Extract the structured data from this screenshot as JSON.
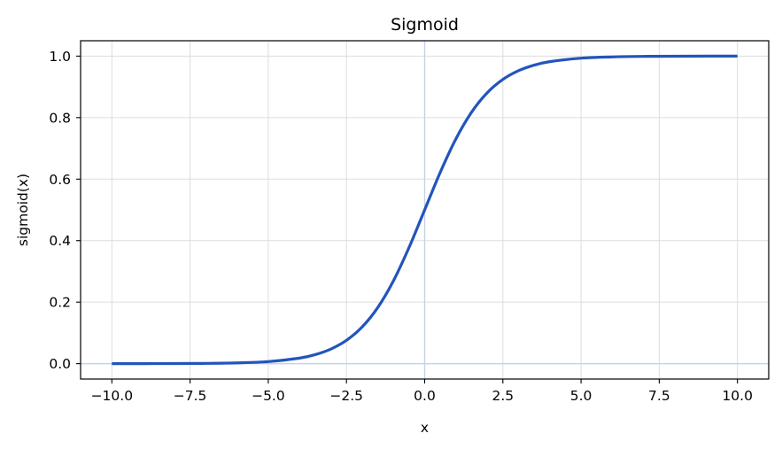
{
  "chart_data": {
    "type": "line",
    "title": "Sigmoid",
    "xlabel": "x",
    "ylabel": "sigmoid(x)",
    "xlim": [
      -11.0,
      11.0
    ],
    "ylim": [
      -0.05,
      1.05
    ],
    "xticks": [
      -10.0,
      -7.5,
      -5.0,
      -2.5,
      0.0,
      2.5,
      5.0,
      7.5,
      10.0
    ],
    "xtick_labels": [
      "−10.0",
      "−7.5",
      "−5.0",
      "−2.5",
      "0.0",
      "2.5",
      "5.0",
      "7.5",
      "10.0"
    ],
    "yticks": [
      0.0,
      0.2,
      0.4,
      0.6,
      0.8,
      1.0
    ],
    "ytick_labels": [
      "0.0",
      "0.2",
      "0.4",
      "0.6",
      "0.8",
      "1.0"
    ],
    "grid": true,
    "reference_lines": {
      "x": 0.0,
      "y": 0.0
    },
    "colors": {
      "line": "#2255bb",
      "grid": "#dddddd",
      "reference": "#c5d3e8",
      "axes": "#000000"
    },
    "series": [
      {
        "x": [
          -10,
          -9,
          -8,
          -7,
          -6,
          -5,
          -4,
          -3.5,
          -3,
          -2.5,
          -2,
          -1.5,
          -1,
          -0.5,
          0,
          0.5,
          1,
          1.5,
          2,
          2.5,
          3,
          3.5,
          4,
          5,
          6,
          7,
          8,
          9,
          10
        ],
        "values": [
          0.0,
          0.0001,
          0.0003,
          0.0009,
          0.0025,
          0.0067,
          0.018,
          0.0293,
          0.0474,
          0.0759,
          0.1192,
          0.1824,
          0.2689,
          0.3775,
          0.5,
          0.6225,
          0.7311,
          0.8176,
          0.8808,
          0.9241,
          0.9526,
          0.9707,
          0.982,
          0.9933,
          0.9975,
          0.9991,
          0.9997,
          0.9999,
          1.0
        ]
      }
    ]
  }
}
